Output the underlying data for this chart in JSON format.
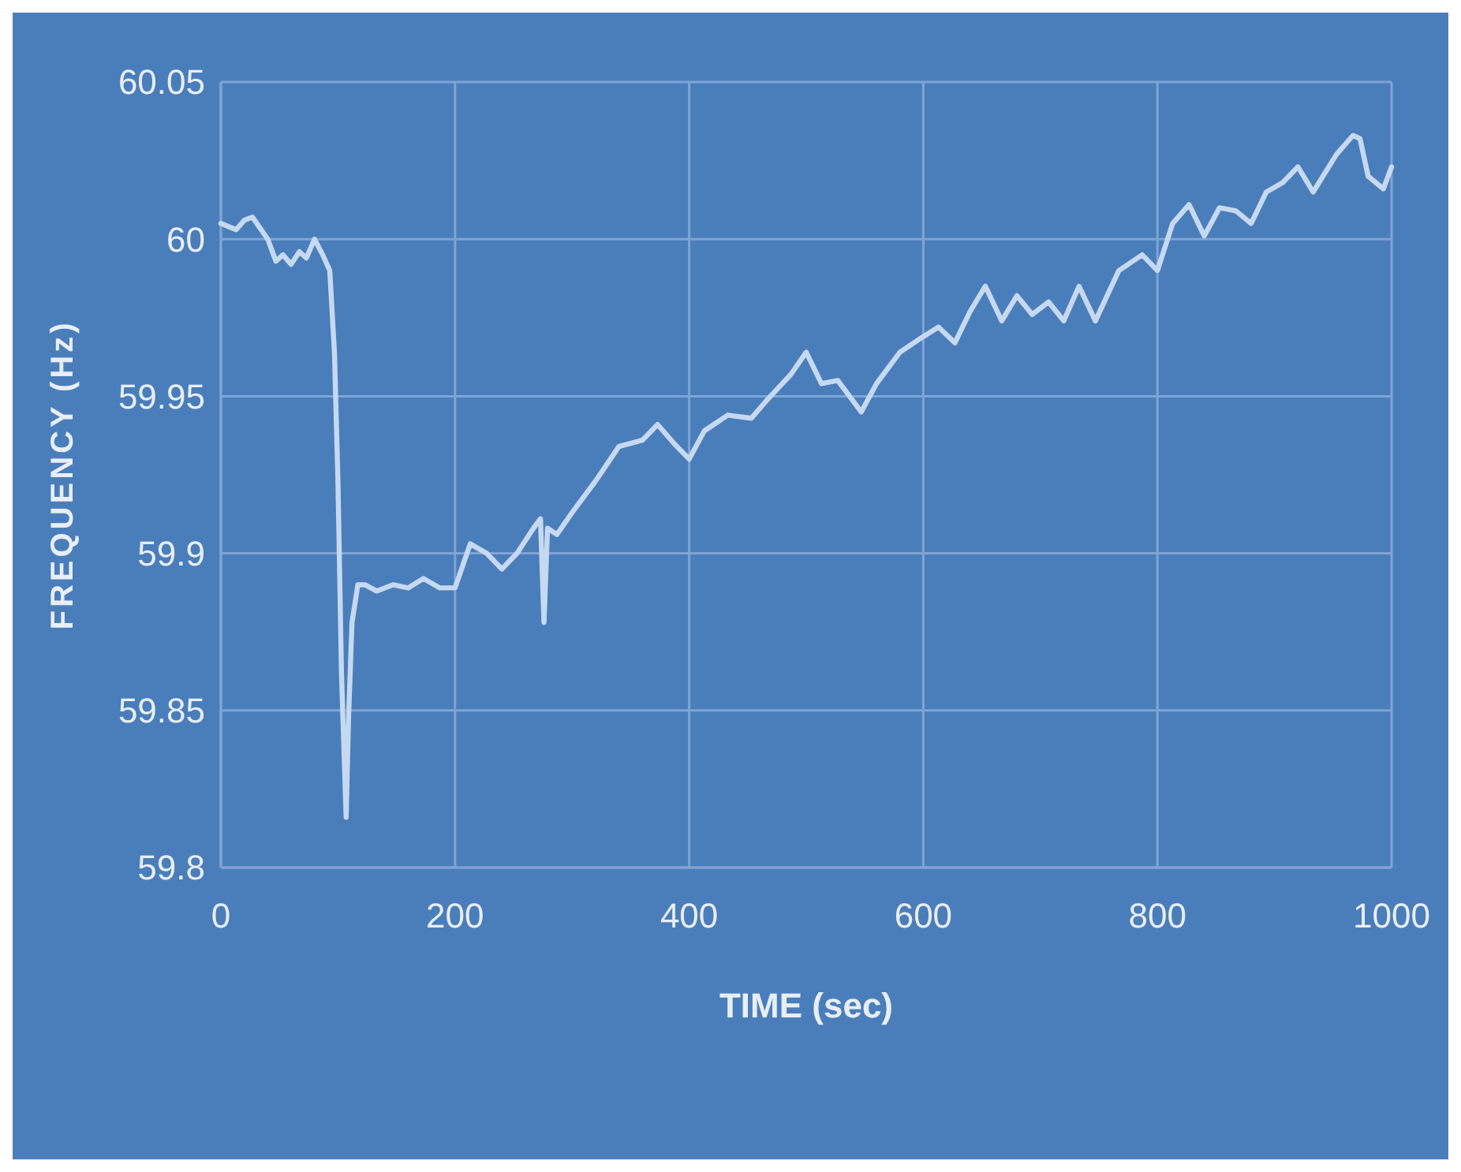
{
  "chart_data": {
    "type": "line",
    "xlabel": "TIME (sec)",
    "ylabel": "FREQUENCY (Hz)",
    "xlim": [
      0,
      1000
    ],
    "xticks": [
      0,
      200,
      400,
      600,
      800,
      1000
    ],
    "ylim": [
      59.8,
      60.05
    ],
    "yticks": [
      59.8,
      59.85,
      59.9,
      59.95,
      60,
      60.05
    ],
    "grid": true,
    "marker": "none",
    "line_style": "solid",
    "series": [
      {
        "color": "#c6d9f1",
        "x": [
          0,
          13,
          20,
          27,
          40,
          47,
          53,
          60,
          67,
          73,
          80,
          87,
          93,
          97,
          100,
          103,
          107,
          109,
          112,
          117,
          123,
          133,
          147,
          160,
          173,
          187,
          200,
          213,
          227,
          240,
          253,
          267,
          273,
          276,
          279,
          287,
          300,
          320,
          340,
          360,
          373,
          387,
          400,
          413,
          433,
          453,
          467,
          487,
          500,
          513,
          527,
          547,
          560,
          580,
          600,
          613,
          627,
          640,
          653,
          667,
          680,
          693,
          707,
          720,
          733,
          747,
          767,
          787,
          800,
          813,
          827,
          840,
          853,
          867,
          880,
          893,
          907,
          920,
          933,
          953,
          967,
          973,
          980,
          993,
          1000
        ],
        "values": [
          60.005,
          60.003,
          60.006,
          60.007,
          60.0,
          59.993,
          59.995,
          59.992,
          59.996,
          59.994,
          60.0,
          59.995,
          59.99,
          59.964,
          59.923,
          59.862,
          59.816,
          59.847,
          59.878,
          59.89,
          59.89,
          59.888,
          59.89,
          59.889,
          59.892,
          59.889,
          59.889,
          59.903,
          59.9,
          59.895,
          59.9,
          59.908,
          59.911,
          59.878,
          59.908,
          59.906,
          59.913,
          59.923,
          59.934,
          59.936,
          59.941,
          59.935,
          59.93,
          59.939,
          59.944,
          59.943,
          59.949,
          59.957,
          59.964,
          59.954,
          59.955,
          59.945,
          59.954,
          59.964,
          59.969,
          59.972,
          59.967,
          59.977,
          59.985,
          59.974,
          59.982,
          59.976,
          59.98,
          59.974,
          59.985,
          59.974,
          59.99,
          59.995,
          59.99,
          60.005,
          60.011,
          60.001,
          60.01,
          60.009,
          60.005,
          60.015,
          60.018,
          60.023,
          60.015,
          60.027,
          60.033,
          60.032,
          60.02,
          60.016,
          60.023
        ]
      }
    ]
  }
}
